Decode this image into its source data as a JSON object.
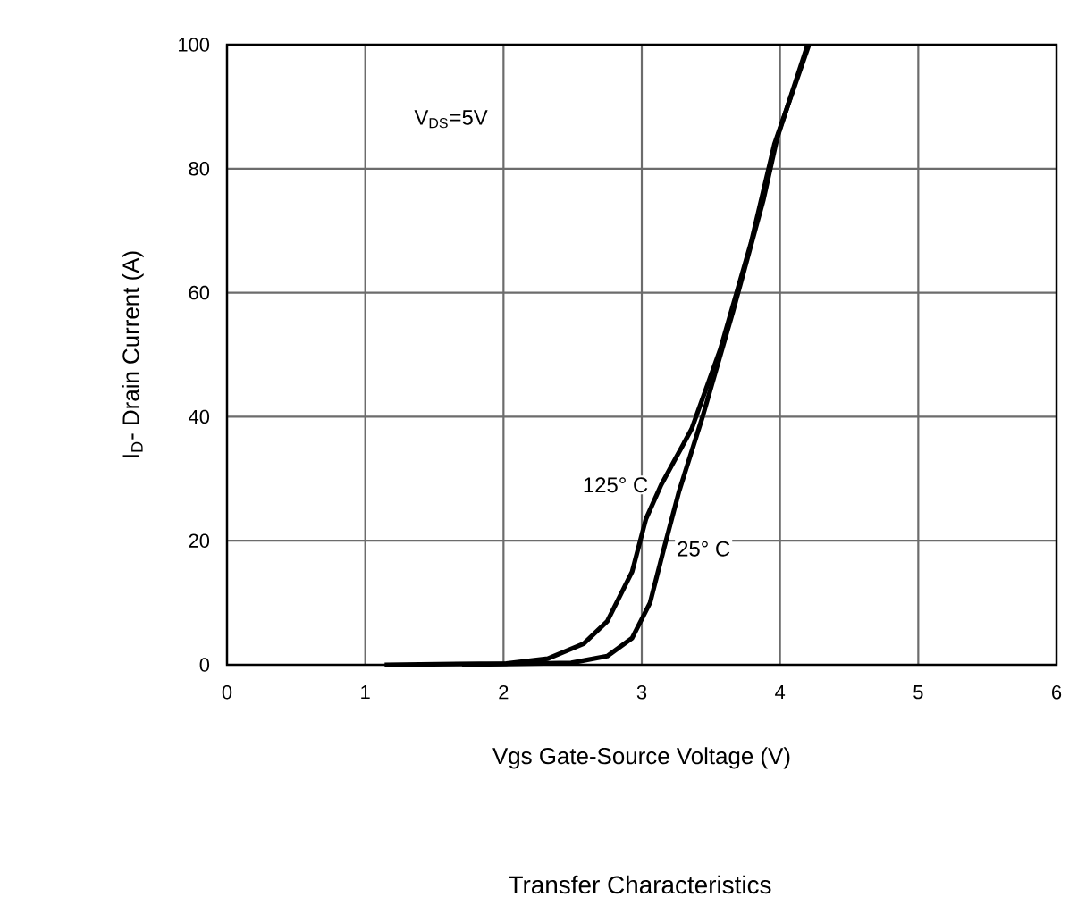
{
  "chart_data": {
    "type": "line",
    "title": "Transfer Characteristics",
    "xlabel": "Vgs Gate-Source Voltage (V)",
    "ylabel": "I$_{D}$- Drain Current (A)",
    "annotations": [
      "V$_{DS}$=5V"
    ],
    "xlim": [
      0,
      6
    ],
    "ylim": [
      0,
      100
    ],
    "xticks": [
      0,
      1,
      2,
      3,
      4,
      5,
      6
    ],
    "yticks": [
      0,
      20,
      40,
      60,
      80,
      100
    ],
    "grid": true,
    "legend": false,
    "marker": "none",
    "line_style": "solid",
    "series": [
      {
        "name": "125° C",
        "color": "#000000",
        "x": [
          1.14,
          2.02,
          2.32,
          2.58,
          2.75,
          2.93,
          3.03,
          3.14,
          3.36,
          3.57,
          3.79,
          3.96,
          4.21
        ],
        "values": [
          0,
          0.2,
          1,
          3.4,
          7,
          15,
          23.5,
          29,
          38,
          51,
          68,
          84,
          100
        ]
      },
      {
        "name": "25° C",
        "color": "#000000",
        "x": [
          1.7,
          2.49,
          2.75,
          2.93,
          3.06,
          3.16,
          3.27,
          3.44,
          3.66,
          3.88,
          3.98,
          4.2
        ],
        "values": [
          0,
          0.3,
          1.4,
          4.3,
          10,
          18.7,
          28,
          40,
          57,
          75,
          85,
          100
        ]
      }
    ]
  }
}
